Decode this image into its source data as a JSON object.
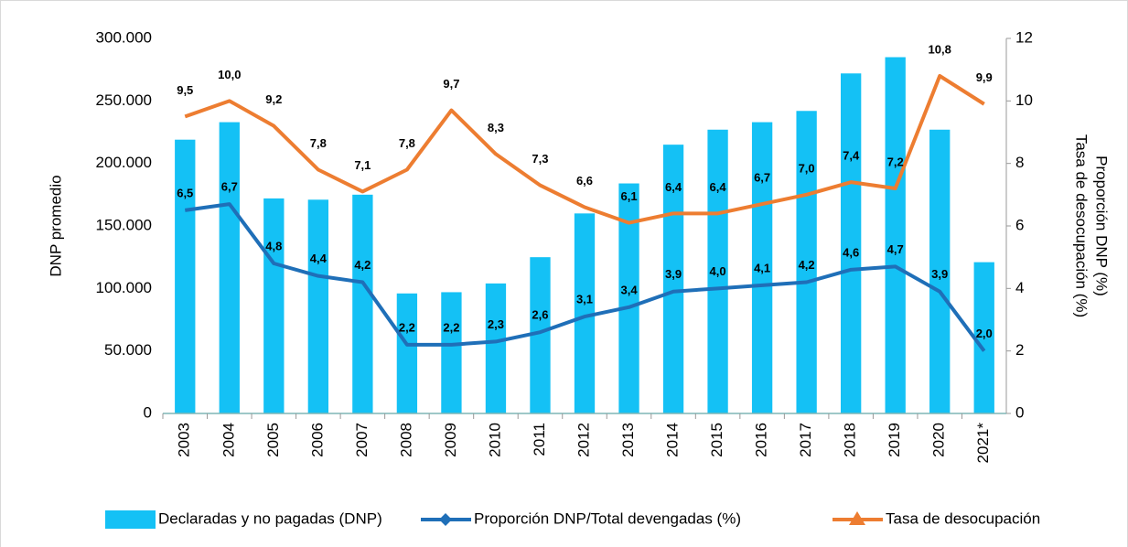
{
  "chart_data": {
    "type": "bar_line",
    "categories": [
      "2003",
      "2004",
      "2005",
      "2006",
      "2007",
      "2008",
      "2009",
      "2010",
      "2011",
      "2012",
      "2013",
      "2014",
      "2015",
      "2016",
      "2017",
      "2018",
      "2019",
      "2020",
      "2021*"
    ],
    "y_label": "DNP promedio",
    "y2_label": [
      "Proporción DNP (%)",
      "Tasa de desocupación (%)"
    ],
    "ylim": [
      0,
      300000
    ],
    "yticks": [
      0,
      {
        "value": 50000,
        "label": "50.000"
      },
      {
        "value": 100000,
        "label": "100.000"
      },
      {
        "value": 150000,
        "label": "150.000"
      },
      {
        "value": 200000,
        "label": "200.000"
      },
      {
        "value": 250000,
        "label": "250.000"
      },
      {
        "value": 300000,
        "label": "300.000"
      }
    ],
    "y2lim": [
      0,
      12
    ],
    "y2ticks": [
      0,
      2,
      4,
      6,
      8,
      10,
      12
    ],
    "legend": "bottom",
    "series": [
      {
        "name": "Declaradas y no pagadas (DNP)",
        "type": "bar",
        "color": "#14c1f5",
        "values": [
          219000,
          233000,
          172000,
          171000,
          175000,
          96000,
          97000,
          104000,
          125000,
          160000,
          184000,
          215000,
          227000,
          233000,
          242000,
          272000,
          285000,
          227000,
          121000
        ]
      },
      {
        "name": "Proporción DNP/Total devengadas (%)",
        "type": "line",
        "axis": "y2",
        "color": "#1f6fb8",
        "values": [
          6.5,
          6.7,
          4.8,
          4.4,
          4.2,
          2.2,
          2.2,
          2.3,
          2.6,
          3.1,
          3.4,
          3.9,
          4.0,
          4.1,
          4.2,
          4.6,
          4.7,
          3.9,
          2.0
        ],
        "value_labels": [
          "6,5",
          "6,7",
          "4,8",
          "4,4",
          "4,2",
          "2,2",
          "2,2",
          "2,3",
          "2,6",
          "3,1",
          "3,4",
          "3,9",
          "4,0",
          "4,1",
          "4,2",
          "4,6",
          "4,7",
          "3,9",
          "2,0"
        ]
      },
      {
        "name": "Tasa de desocupación",
        "type": "line",
        "axis": "y2",
        "color": "#ed7d31",
        "values": [
          9.5,
          10.0,
          9.2,
          7.8,
          7.1,
          7.8,
          9.7,
          8.3,
          7.3,
          6.6,
          6.1,
          6.4,
          6.4,
          6.7,
          7.0,
          7.4,
          7.2,
          10.8,
          9.9
        ],
        "value_labels": [
          "9,5",
          "10,0",
          "9,2",
          "7,8",
          "7,1",
          "7,8",
          "9,7",
          "8,3",
          "7,3",
          "6,6",
          "6,1",
          "6,4",
          "6,4",
          "6,7",
          "7,0",
          "7,4",
          "7,2",
          "10,8",
          "9,9"
        ]
      }
    ]
  }
}
